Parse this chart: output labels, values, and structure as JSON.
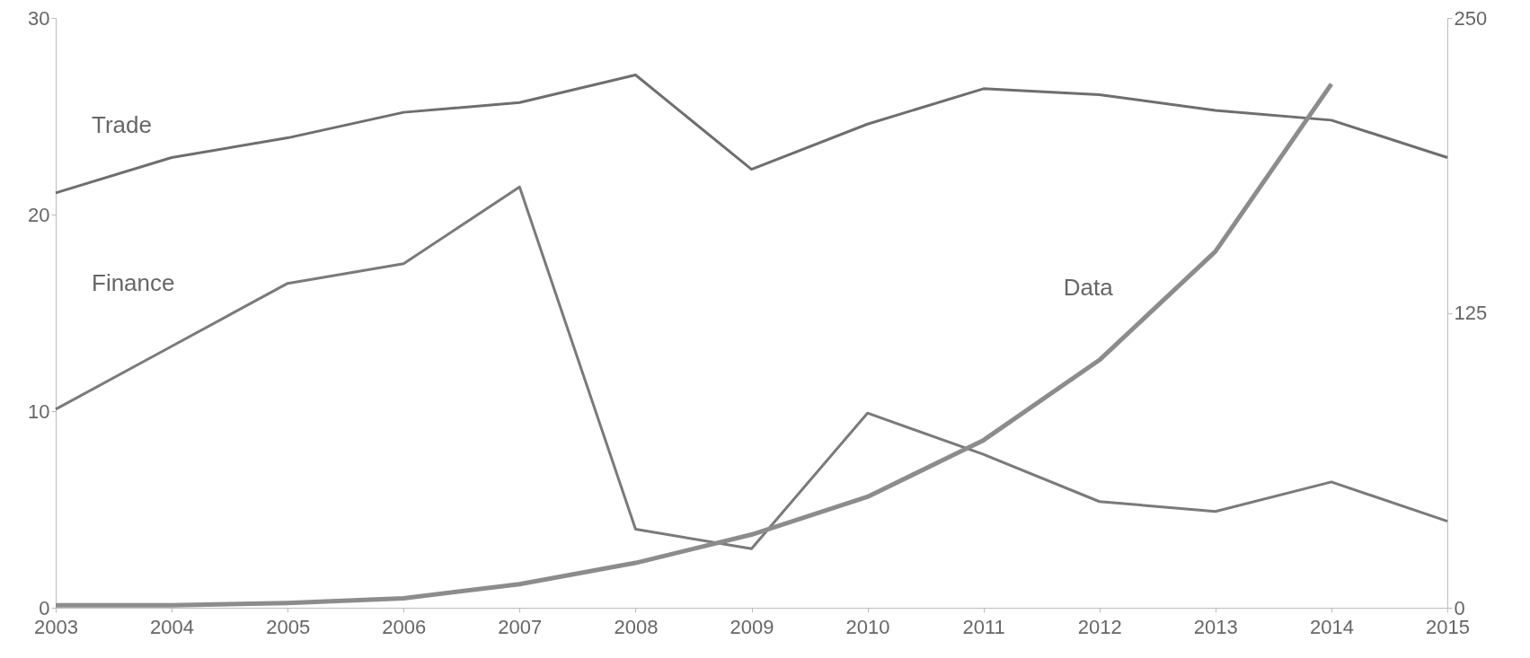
{
  "chart_data": {
    "type": "line",
    "x": [
      2003,
      2004,
      2005,
      2006,
      2007,
      2008,
      2009,
      2010,
      2011,
      2012,
      2013,
      2014,
      2015
    ],
    "series": [
      {
        "name": "Trade",
        "color": "#6e6e6e",
        "values": [
          21.1,
          22.9,
          23.9,
          25.2,
          25.7,
          27.1,
          22.3,
          24.6,
          26.4,
          26.1,
          25.3,
          24.8,
          22.9
        ]
      },
      {
        "name": "Finance",
        "color": "#7a7a7a",
        "values": [
          10.1,
          13.3,
          16.5,
          17.5,
          21.4,
          4.0,
          3.0,
          9.9,
          7.8,
          5.4,
          4.9,
          6.4,
          4.4
        ]
      },
      {
        "name": "Data",
        "color": "#8c8c8c",
        "axis": "y2",
        "values": [
          1,
          1,
          2,
          4,
          10,
          19,
          31,
          47,
          71,
          105,
          151,
          222,
          null
        ]
      }
    ],
    "xlim": [
      2003,
      2015
    ],
    "xticks": [
      2003,
      2004,
      2005,
      2006,
      2007,
      2008,
      2009,
      2010,
      2011,
      2012,
      2013,
      2014,
      2015
    ],
    "ylim": [
      0,
      30
    ],
    "yticks": [
      0,
      10,
      20,
      30
    ],
    "y2lim": [
      0,
      250
    ],
    "y2ticks": [
      0,
      125,
      250
    ]
  }
}
